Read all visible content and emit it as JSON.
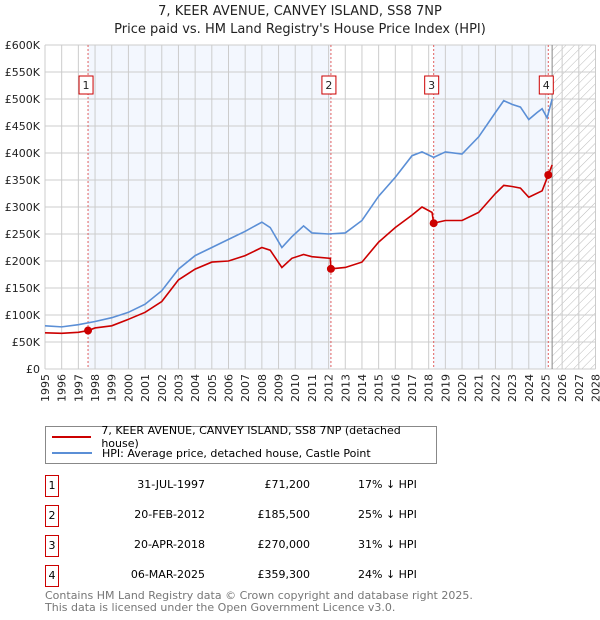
{
  "chart_data": {
    "type": "line",
    "title": "7, KEER AVENUE, CANVEY ISLAND, SS8 7NP",
    "subtitle": "Price paid vs. HM Land Registry's House Price Index (HPI)",
    "xlim": [
      1995,
      2028
    ],
    "ylim": [
      0,
      600000
    ],
    "y_ticks": [
      "£0",
      "£50K",
      "£100K",
      "£150K",
      "£200K",
      "£250K",
      "£300K",
      "£350K",
      "£400K",
      "£450K",
      "£500K",
      "£550K",
      "£600K"
    ],
    "x_ticks": [
      "1995",
      "1996",
      "1997",
      "1998",
      "1999",
      "2000",
      "2001",
      "2002",
      "2003",
      "2004",
      "2005",
      "2006",
      "2007",
      "2008",
      "2009",
      "2010",
      "2011",
      "2012",
      "2013",
      "2014",
      "2015",
      "2016",
      "2017",
      "2018",
      "2019",
      "2020",
      "2021",
      "2022",
      "2023",
      "2024",
      "2025",
      "2026",
      "2027",
      "2028"
    ],
    "grid": true,
    "forecast_hatch_from": 2025.4,
    "series": [
      {
        "name": "7, KEER AVENUE, CANVEY ISLAND, SS8 7NP (detached house)",
        "color": "#cc0000",
        "points": [
          [
            1995,
            67000
          ],
          [
            1996,
            66000
          ],
          [
            1997,
            68000
          ],
          [
            1997.58,
            71200
          ],
          [
            1998,
            76000
          ],
          [
            1999,
            80000
          ],
          [
            2000,
            92000
          ],
          [
            2001,
            105000
          ],
          [
            2002,
            125000
          ],
          [
            2003,
            165000
          ],
          [
            2004,
            185000
          ],
          [
            2005,
            198000
          ],
          [
            2006,
            200000
          ],
          [
            2007,
            210000
          ],
          [
            2008,
            225000
          ],
          [
            2008.5,
            220000
          ],
          [
            2009.2,
            188000
          ],
          [
            2009.8,
            205000
          ],
          [
            2010.5,
            212000
          ],
          [
            2011,
            208000
          ],
          [
            2012.1,
            205000
          ],
          [
            2012.14,
            185500
          ],
          [
            2013,
            188000
          ],
          [
            2014,
            198000
          ],
          [
            2015,
            235000
          ],
          [
            2016,
            262000
          ],
          [
            2017,
            285000
          ],
          [
            2017.6,
            300000
          ],
          [
            2018.2,
            290000
          ],
          [
            2018.3,
            270000
          ],
          [
            2019,
            275000
          ],
          [
            2020,
            275000
          ],
          [
            2021,
            290000
          ],
          [
            2022,
            325000
          ],
          [
            2022.5,
            340000
          ],
          [
            2023,
            338000
          ],
          [
            2023.5,
            335000
          ],
          [
            2024,
            318000
          ],
          [
            2024.8,
            330000
          ],
          [
            2025.17,
            359300
          ],
          [
            2025.4,
            378000
          ]
        ]
      },
      {
        "name": "HPI: Average price, detached house, Castle Point",
        "color": "#5b8fd6",
        "points": [
          [
            1995,
            80000
          ],
          [
            1996,
            78000
          ],
          [
            1997,
            82000
          ],
          [
            1998,
            88000
          ],
          [
            1999,
            95000
          ],
          [
            2000,
            105000
          ],
          [
            2001,
            120000
          ],
          [
            2002,
            145000
          ],
          [
            2003,
            185000
          ],
          [
            2004,
            210000
          ],
          [
            2005,
            225000
          ],
          [
            2006,
            240000
          ],
          [
            2007,
            255000
          ],
          [
            2008,
            272000
          ],
          [
            2008.5,
            262000
          ],
          [
            2009.2,
            225000
          ],
          [
            2009.8,
            245000
          ],
          [
            2010.5,
            265000
          ],
          [
            2011,
            252000
          ],
          [
            2012,
            250000
          ],
          [
            2013,
            252000
          ],
          [
            2014,
            275000
          ],
          [
            2015,
            320000
          ],
          [
            2016,
            355000
          ],
          [
            2017,
            395000
          ],
          [
            2017.6,
            402000
          ],
          [
            2018.3,
            392000
          ],
          [
            2019,
            402000
          ],
          [
            2020,
            398000
          ],
          [
            2021,
            430000
          ],
          [
            2022,
            475000
          ],
          [
            2022.5,
            497000
          ],
          [
            2023,
            490000
          ],
          [
            2023.5,
            485000
          ],
          [
            2024,
            462000
          ],
          [
            2024.5,
            475000
          ],
          [
            2024.8,
            482000
          ],
          [
            2025.1,
            465000
          ],
          [
            2025.4,
            500000
          ]
        ]
      }
    ],
    "sales": [
      {
        "label": "1",
        "x": 2012.0,
        "year": 1997.58,
        "value": 71200
      },
      {
        "label": "2",
        "year": 2012.14,
        "value": 185500
      },
      {
        "label": "3",
        "year": 2018.3,
        "value": 270000
      },
      {
        "label": "4",
        "year": 2025.17,
        "value": 359300
      }
    ]
  },
  "legend": [
    "7, KEER AVENUE, CANVEY ISLAND, SS8 7NP (detached house)",
    "HPI: Average price, detached house, Castle Point"
  ],
  "table": [
    {
      "num": "1",
      "date": "31-JUL-1997",
      "price": "£71,200",
      "hpi": "17% ↓ HPI"
    },
    {
      "num": "2",
      "date": "20-FEB-2012",
      "price": "£185,500",
      "hpi": "25% ↓ HPI"
    },
    {
      "num": "3",
      "date": "20-APR-2018",
      "price": "£270,000",
      "hpi": "31% ↓ HPI"
    },
    {
      "num": "4",
      "date": "06-MAR-2025",
      "price": "£359,300",
      "hpi": "24% ↓ HPI"
    }
  ],
  "footer": [
    "Contains HM Land Registry data © Crown copyright and database right 2025.",
    "This data is licensed under the Open Government Licence v3.0."
  ]
}
